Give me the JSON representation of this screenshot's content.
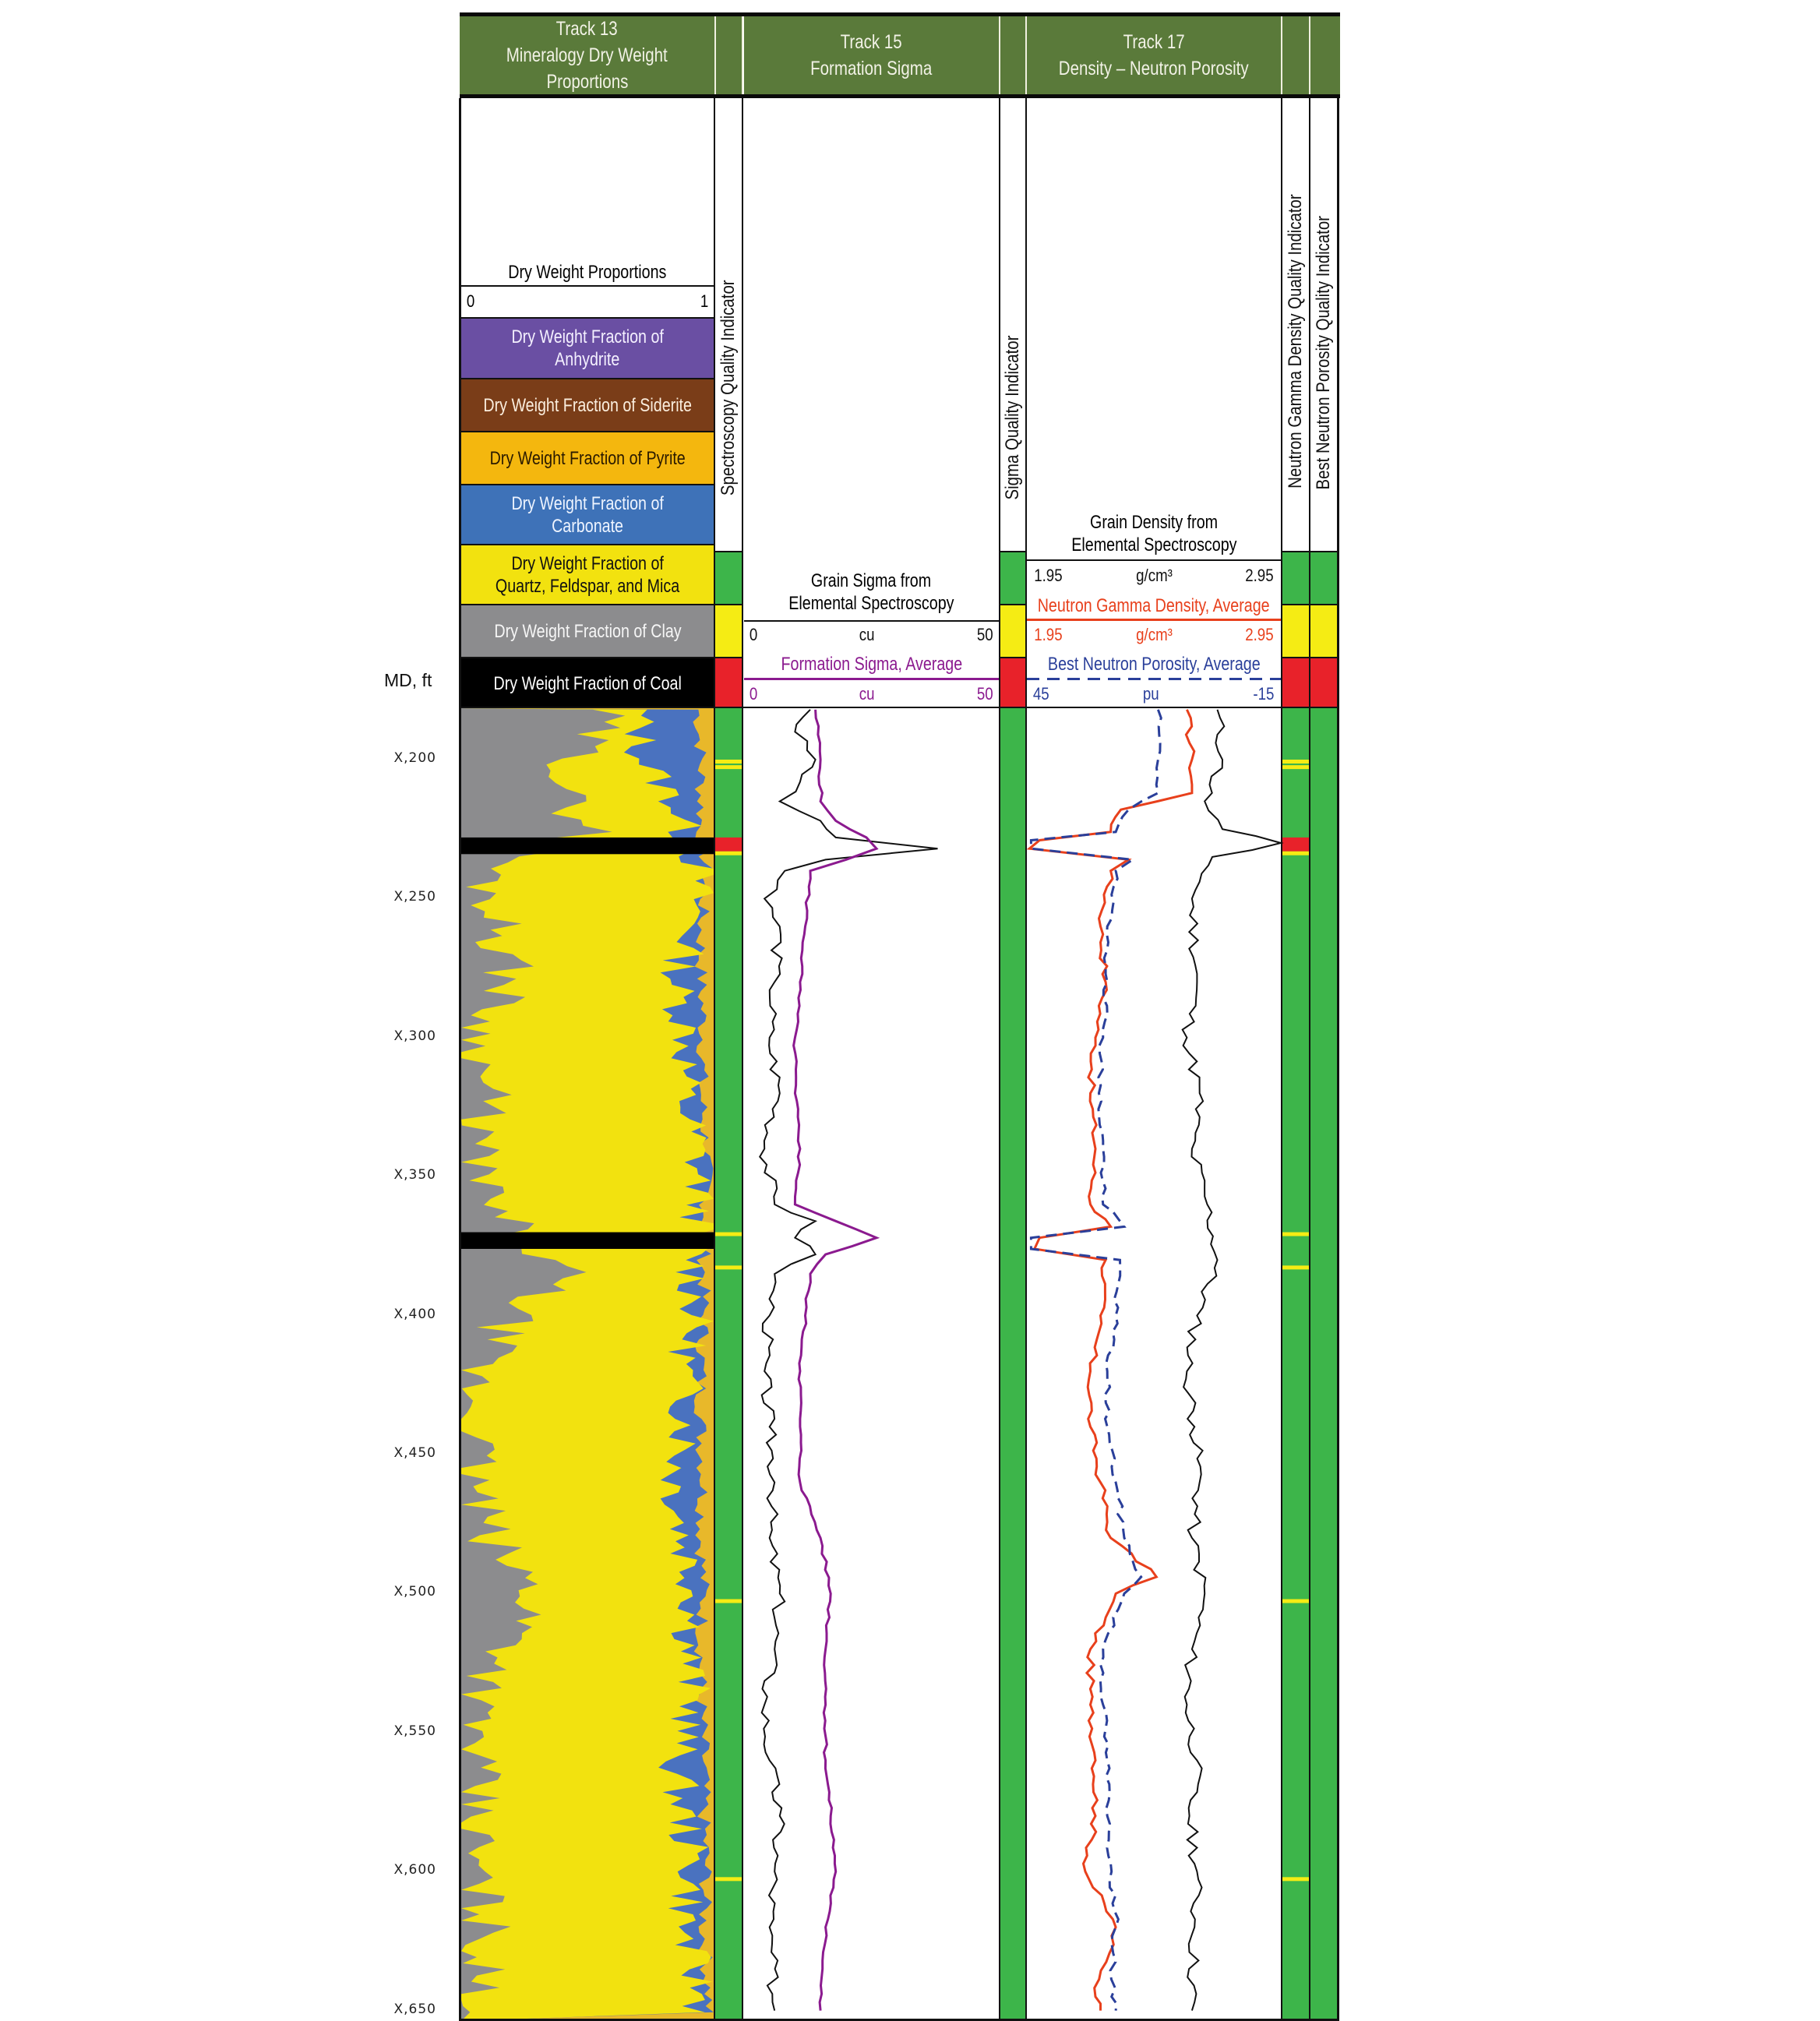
{
  "header": {
    "track13": {
      "line1": "Track 13",
      "line2": "Mineralogy Dry Weight",
      "line3": "Proportions"
    },
    "track15": {
      "line1": "Track 15",
      "line2": "Formation Sigma"
    },
    "track17": {
      "line1": "Track 17",
      "line2": "Density – Neutron Porosity"
    }
  },
  "track13": {
    "title": "Dry Weight Proportions",
    "scale_min": "0",
    "scale_max": "1",
    "legend": [
      {
        "label_l1": "Dry Weight Fraction of",
        "label_l2": "Anhydrite",
        "color": "#6a4fa3",
        "text_color": "#f4f0ff"
      },
      {
        "label_l1": "Dry Weight Fraction of Siderite",
        "label_l2": "",
        "color": "#7a3d18",
        "text_color": "#fbeede"
      },
      {
        "label_l1": "Dry Weight Fraction of Pyrite",
        "label_l2": "",
        "color": "#f4b70e",
        "text_color": "#2a1a00"
      },
      {
        "label_l1": "Dry Weight Fraction of",
        "label_l2": "Carbonate",
        "color": "#3e72b8",
        "text_color": "#eef4ff"
      },
      {
        "label_l1": "Dry Weight Fraction of",
        "label_l2": "Quartz, Feldspar, and Mica",
        "color": "#f2e20f",
        "text_color": "#111111"
      },
      {
        "label_l1": "Dry Weight Fraction of Clay",
        "label_l2": "",
        "color": "#8c8c8e",
        "text_color": "#f6f6f6"
      },
      {
        "label_l1": "Dry Weight Fraction of Coal",
        "label_l2": "",
        "color": "#000000",
        "text_color": "#ffffff"
      }
    ]
  },
  "quality_labels": {
    "spectroscopy": "Spectroscopy Quality Indicator",
    "sigma": "Sigma Quality Indicator",
    "neutron_gamma_density": "Neutron Gamma Density Quality Indicator",
    "best_neutron_porosity": "Best Neutron Porosity Quality Indicator"
  },
  "track15": {
    "curve1": {
      "title_l1": "Grain Sigma from",
      "title_l2": "Elemental Spectroscopy",
      "min": "0",
      "unit": "cu",
      "max": "50",
      "color": "#111111"
    },
    "curve2": {
      "title": "Formation Sigma, Average",
      "min": "0",
      "unit": "cu",
      "max": "50",
      "color": "#8b1a8f"
    }
  },
  "track17": {
    "curve1": {
      "title_l1": "Grain Density from",
      "title_l2": "Elemental Spectroscopy",
      "min": "1.95",
      "unit": "g/cm³",
      "max": "2.95",
      "color": "#111111"
    },
    "curve2": {
      "title": "Neutron Gamma Density, Average",
      "min": "1.95",
      "unit": "g/cm³",
      "max": "2.95",
      "color": "#e8401c"
    },
    "curve3": {
      "title": "Best Neutron Porosity, Average",
      "min": "45",
      "unit": "pu",
      "max": "-15",
      "color": "#2a3f9a"
    }
  },
  "depth_axis": {
    "label": "MD, ft",
    "ticks": [
      "X,200",
      "X,250",
      "X,300",
      "X,350",
      "X,400",
      "X,450",
      "X,500",
      "X,550",
      "X,600",
      "X,650"
    ]
  },
  "colors": {
    "header_green": "#5a7a3a",
    "quality_green": "#3db54a",
    "quality_yellow": "#f5ec14",
    "quality_red": "#e8222a",
    "clay": "#8c8c8e",
    "qfm": "#f2e20f",
    "carbonate": "#4a72bf",
    "pyrite": "#e8b82a",
    "coal": "#000000"
  },
  "chart_data": {
    "type": "line",
    "title": "Well log: Mineralogy Dry Weight Proportions, Formation Sigma, Density – Neutron Porosity",
    "ylabel": "MD, ft",
    "y_ticks": [
      "X,200",
      "X,250",
      "X,300",
      "X,350",
      "X,400",
      "X,450",
      "X,500",
      "X,550",
      "X,600",
      "X,650"
    ],
    "depth_range_rel": [
      181,
      652
    ],
    "coal_intervals_rel": [
      [
        228,
        234
      ],
      [
        370,
        376
      ]
    ],
    "tracks": [
      {
        "name": "Track 13 Mineralogy Dry Weight Proportions",
        "type": "area",
        "xlim": [
          0,
          1
        ],
        "series_order_left_to_right": [
          "Clay",
          "Quartz, Feldspar, and Mica",
          "Carbonate",
          "Pyrite",
          "Siderite",
          "Anhydrite"
        ],
        "depth_rel": [
          185,
          200,
          215,
          225,
          240,
          260,
          280,
          300,
          320,
          340,
          360,
          385,
          400,
          420,
          440,
          460,
          480,
          500,
          520,
          540,
          560,
          580,
          600,
          620,
          645
        ],
        "clay_cum": [
          0.55,
          0.45,
          0.4,
          0.55,
          0.1,
          0.15,
          0.2,
          0.05,
          0.1,
          0.05,
          0.1,
          0.4,
          0.2,
          0.05,
          0.05,
          0.05,
          0.1,
          0.3,
          0.2,
          0.05,
          0.05,
          0.05,
          0.05,
          0.1,
          0.05
        ],
        "qfm_cum": [
          0.7,
          0.72,
          0.85,
          0.88,
          0.95,
          0.92,
          0.85,
          0.9,
          0.88,
          0.93,
          0.95,
          0.92,
          0.93,
          0.88,
          0.9,
          0.85,
          0.88,
          0.93,
          0.9,
          0.92,
          0.85,
          0.88,
          0.92,
          0.88,
          0.95
        ],
        "carbonate_cum": [
          0.94,
          0.95,
          0.95,
          0.95,
          0.97,
          0.95,
          0.95,
          0.96,
          0.95,
          0.97,
          0.97,
          0.96,
          0.96,
          0.95,
          0.95,
          0.96,
          0.95,
          0.96,
          0.95,
          0.95,
          0.96,
          0.96,
          0.97,
          0.96,
          0.98
        ]
      },
      {
        "name": "Track 15 Formation Sigma",
        "xlim": [
          0,
          50
        ],
        "unit": "cu",
        "series": [
          {
            "name": "Grain Sigma from Elemental Spectroscopy",
            "color": "#111111",
            "depth_rel": [
              182,
              190,
              200,
              208,
              215,
              222,
              228,
              232,
              236,
              240,
              250,
              260,
              280,
              300,
              320,
              340,
              360,
              366,
              372,
              378,
              385,
              400,
              420,
              440,
              460,
              480,
              500,
              520,
              540,
              560,
              580,
              600,
              620,
              650
            ],
            "values": [
              13,
              10,
              14,
              11,
              7,
              15,
              18,
              38,
              16,
              8,
              4,
              7,
              6,
              5,
              7,
              4,
              6,
              14,
              10,
              14,
              6,
              5,
              4,
              5,
              6,
              5,
              7,
              6,
              4,
              5,
              7,
              6,
              5,
              6
            ]
          },
          {
            "name": "Formation Sigma, Average",
            "color": "#8b1a8f",
            "depth_rel": [
              182,
              200,
              215,
              222,
              228,
              232,
              236,
              240,
              260,
              280,
              300,
              320,
              340,
              360,
              366,
              372,
              378,
              385,
              400,
              420,
              440,
              460,
              480,
              500,
              520,
              540,
              560,
              580,
              600,
              620,
              650
            ],
            "values": [
              14,
              15,
              15,
              18,
              24,
              26,
              20,
              13,
              12,
              11,
              10,
              10,
              11,
              10,
              18,
              26,
              16,
              13,
              12,
              11,
              11,
              11,
              15,
              17,
              16,
              16,
              16,
              17,
              18,
              16,
              15
            ]
          }
        ]
      },
      {
        "name": "Track 17 Density – Neutron Porosity",
        "series": [
          {
            "name": "Grain Density from Elemental Spectroscopy",
            "unit": "g/cm³",
            "xlim": [
              1.95,
              2.95
            ],
            "color": "#111111",
            "depth_rel": [
              182,
              200,
              215,
              225,
              230,
              235,
              250,
              280,
              300,
              320,
              340,
              360,
              380,
              400,
              420,
              440,
              460,
              480,
              500,
              520,
              540,
              560,
              580,
              600,
              620,
              650
            ],
            "values": [
              2.7,
              2.72,
              2.65,
              2.72,
              2.95,
              2.68,
              2.6,
              2.62,
              2.58,
              2.63,
              2.6,
              2.66,
              2.7,
              2.62,
              2.58,
              2.61,
              2.63,
              2.6,
              2.65,
              2.6,
              2.58,
              2.62,
              2.59,
              2.62,
              2.61,
              2.6
            ]
          },
          {
            "name": "Neutron Gamma Density, Average",
            "unit": "g/cm³",
            "xlim": [
              1.95,
              2.95
            ],
            "color": "#e8401c",
            "depth_rel": [
              182,
              200,
              212,
              218,
              226,
              229,
              232,
              236,
              240,
              260,
              280,
              300,
              320,
              340,
              360,
              368,
              372,
              376,
              380,
              400,
              420,
              440,
              460,
              480,
              494,
              500,
              520,
              540,
              560,
              580,
              600,
              620,
              645,
              650
            ],
            "values": [
              2.58,
              2.6,
              2.6,
              2.32,
              2.28,
              2.0,
              1.96,
              2.35,
              2.28,
              2.24,
              2.26,
              2.22,
              2.2,
              2.22,
              2.2,
              2.28,
              2.0,
              1.98,
              2.26,
              2.24,
              2.2,
              2.2,
              2.24,
              2.28,
              2.46,
              2.3,
              2.2,
              2.2,
              2.22,
              2.22,
              2.18,
              2.3,
              2.22,
              2.24
            ]
          },
          {
            "name": "Best Neutron Porosity, Average",
            "unit": "pu",
            "xlim": [
              45,
              -15
            ],
            "color": "#2a3f9a",
            "depth_rel": [
              182,
              200,
              212,
              218,
              226,
              229,
              232,
              236,
              240,
              260,
              280,
              300,
              320,
              340,
              360,
              368,
              372,
              376,
              380,
              400,
              420,
              440,
              460,
              480,
              494,
              500,
              520,
              540,
              560,
              580,
              600,
              620,
              645,
              650
            ],
            "values": [
              14,
              14,
              14,
              21,
              24,
              44,
              44,
              20,
              24,
              26,
              26,
              27,
              28,
              27,
              27,
              22,
              44,
              44,
              23,
              24,
              26,
              26,
              24,
              22,
              18,
              22,
              27,
              27,
              26,
              26,
              25,
              24,
              25,
              24
            ]
          }
        ]
      },
      {
        "name": "Quality Indicators",
        "legend_colors": {
          "good": "green",
          "warning": "yellow",
          "bad": "red"
        },
        "spectroscopy_flags_rel": [
          {
            "depth": 200,
            "flag": "yellow"
          },
          {
            "depth": 202,
            "flag": "yellow"
          },
          {
            "depth": 228,
            "flag": "red"
          },
          {
            "depth": 233,
            "flag": "yellow"
          },
          {
            "depth": 370,
            "flag": "yellow"
          },
          {
            "depth": 382,
            "flag": "yellow"
          },
          {
            "depth": 502,
            "flag": "yellow"
          },
          {
            "depth": 602,
            "flag": "yellow"
          }
        ],
        "sigma_flags_rel": [],
        "neutron_gamma_density_flags_rel": [
          {
            "depth": 200,
            "flag": "yellow"
          },
          {
            "depth": 202,
            "flag": "yellow"
          },
          {
            "depth": 228,
            "flag": "red"
          },
          {
            "depth": 233,
            "flag": "yellow"
          },
          {
            "depth": 370,
            "flag": "yellow"
          },
          {
            "depth": 382,
            "flag": "yellow"
          },
          {
            "depth": 502,
            "flag": "yellow"
          },
          {
            "depth": 602,
            "flag": "yellow"
          }
        ],
        "best_neutron_porosity_flags_rel": []
      }
    ]
  }
}
